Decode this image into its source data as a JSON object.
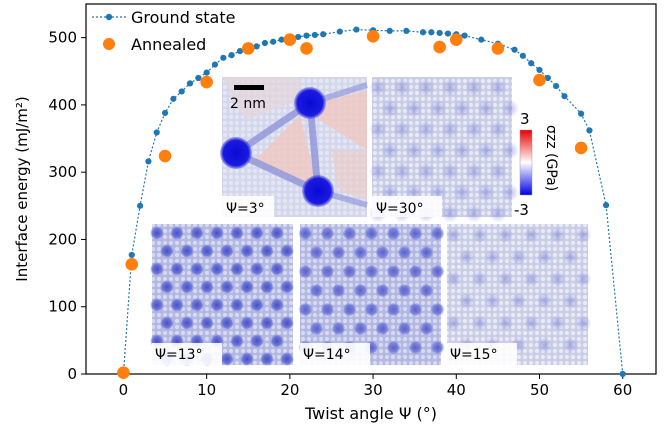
{
  "chart_data": {
    "type": "scatter",
    "xlabel": "Twist angle Ψ (°)",
    "ylabel": "Interface energy (mJ/m²)",
    "xlim": [
      -4.5,
      64
    ],
    "ylim": [
      0,
      550
    ],
    "xticks": [
      0,
      10,
      20,
      30,
      40,
      50,
      60
    ],
    "yticks": [
      0,
      100,
      200,
      300,
      400,
      500
    ],
    "legend_position": "top-left",
    "colors": {
      "ground": "#1f77b4",
      "annealed": "#ff7f0e"
    },
    "series": [
      {
        "name": "Ground state",
        "style": "dotted-line-with-markers",
        "x": [
          0,
          1,
          2,
          3,
          4,
          5,
          6,
          7,
          8,
          9,
          10,
          11,
          12,
          13,
          14,
          15,
          16,
          17,
          18,
          19,
          20,
          21,
          22,
          23,
          24,
          26,
          28,
          30,
          32,
          34,
          36,
          37,
          38,
          39,
          40,
          41,
          43,
          45,
          47,
          48,
          49,
          50,
          51,
          52,
          53,
          55,
          56,
          58,
          60
        ],
        "y": [
          0,
          177,
          250,
          316,
          359,
          388,
          409,
          420,
          432,
          440,
          448,
          460,
          470,
          474,
          480,
          484,
          487,
          492,
          494,
          497,
          500,
          501,
          503,
          504,
          505,
          509,
          512,
          511,
          510,
          510,
          508,
          508,
          507,
          506,
          505,
          503,
          497,
          491,
          482,
          473,
          462,
          452,
          440,
          428,
          413,
          387,
          362,
          251,
          0
        ]
      },
      {
        "name": "Annealed",
        "style": "markers",
        "x": [
          0,
          1,
          5,
          10,
          15,
          20,
          22,
          30,
          38,
          40,
          45,
          50,
          55
        ],
        "y": [
          2,
          163,
          324,
          434,
          484,
          497,
          484,
          502,
          486,
          497,
          484,
          437,
          336
        ]
      }
    ],
    "insets": [
      {
        "label": "Ψ=3°",
        "scale_bar": "2 nm"
      },
      {
        "label": "Ψ=30°"
      },
      {
        "label": "Ψ=13°"
      },
      {
        "label": "Ψ=14°"
      },
      {
        "label": "Ψ=15°"
      }
    ],
    "colorbar": {
      "label": "σzz (GPa)",
      "max_label": "3",
      "min_label": "-3"
    }
  }
}
